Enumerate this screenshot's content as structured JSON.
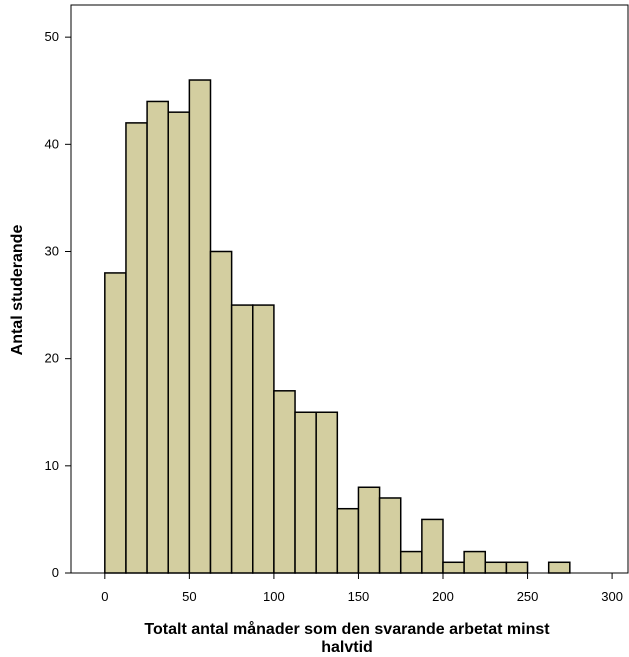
{
  "chart_data": {
    "type": "bar",
    "title": "",
    "xlabel_lines": [
      "Totalt antal månader som den svarande arbetat minst",
      "halvtid"
    ],
    "ylabel": "Antal studerande",
    "bin_width": 12.5,
    "bins_start": [
      0,
      12.5,
      25,
      37.5,
      50,
      62.5,
      75,
      87.5,
      100,
      112.5,
      125,
      137.5,
      150,
      162.5,
      175,
      187.5,
      200,
      212.5,
      225,
      237.5,
      250,
      262.5
    ],
    "values": [
      28,
      42,
      44,
      43,
      46,
      30,
      25,
      25,
      17,
      15,
      15,
      6,
      8,
      7,
      2,
      5,
      1,
      2,
      1,
      1,
      0,
      1
    ],
    "xlim": [
      -20,
      310
    ],
    "ylim": [
      0,
      53
    ],
    "xticks": [
      0,
      50,
      100,
      150,
      200,
      250,
      300
    ],
    "yticks": [
      0,
      10,
      20,
      30,
      40,
      50
    ],
    "bar_color": "#d3cea0",
    "bar_edge_color": "#000000",
    "grid": false,
    "legend": "none"
  }
}
